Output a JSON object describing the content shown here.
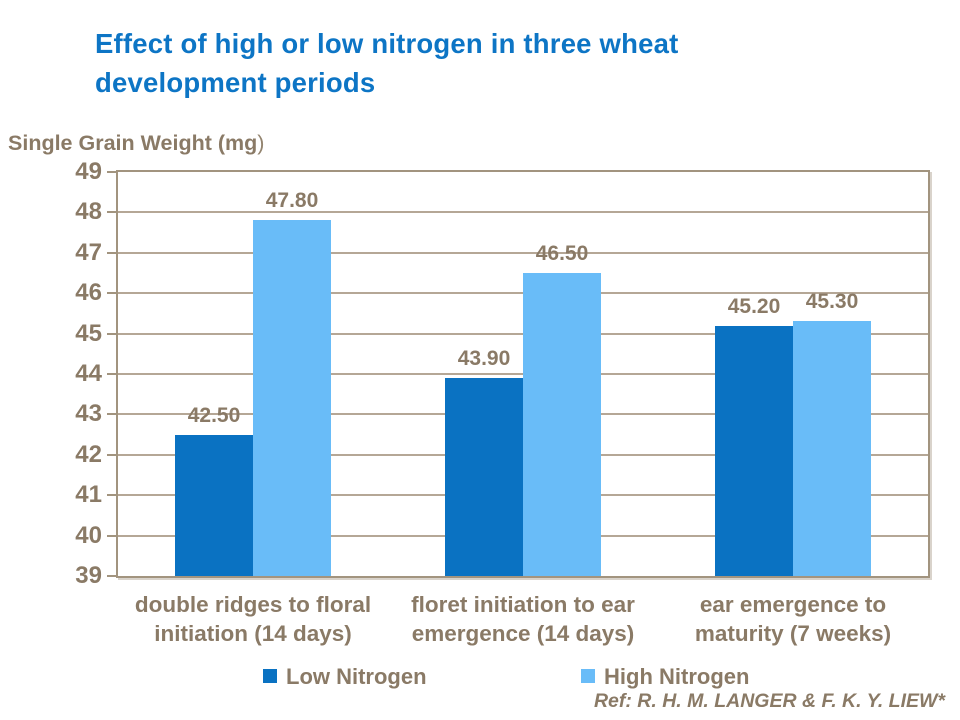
{
  "header": {
    "title": "Effect of high or low nitrogen in three wheat\ndevelopment periods"
  },
  "axis": {
    "y_title": "Single Grain Weight (mg",
    "y_title_suffix": ")"
  },
  "footer": {
    "ref": "Ref: R. H. M. LANGER & F. K. Y. LIEW*"
  },
  "colors": {
    "title_blue": "#0d75c5",
    "low_nitrogen_bar": "#0a72c2",
    "high_nitrogen_bar": "#69bcf8",
    "text_brown": "#8a7a66",
    "gridline_tan": "#b5a796",
    "border_tan": "#a2947f",
    "background": "#ffffff"
  },
  "chart_data": {
    "type": "bar",
    "title": "Effect of high or low nitrogen in three wheat development periods",
    "xlabel": "",
    "ylabel": "Single Grain Weight (mg)",
    "categories": [
      "double ridges to floral\ninitiation (14 days)",
      "floret initiation to ear\nemergence (14 days)",
      "ear emergence to\nmaturity (7 weeks)"
    ],
    "series": [
      {
        "name": "Low Nitrogen",
        "color": "#0a72c2",
        "values": [
          42.5,
          43.9,
          45.2
        ]
      },
      {
        "name": "High Nitrogen",
        "color": "#69bcf8",
        "values": [
          47.8,
          46.5,
          45.3
        ]
      }
    ],
    "value_label_decimals": 2,
    "ylim": [
      39,
      49
    ],
    "ytick_step": 1,
    "yticks": [
      39,
      40,
      41,
      42,
      43,
      44,
      45,
      46,
      47,
      48,
      49
    ],
    "grid": true,
    "legend_position": "bottom"
  }
}
